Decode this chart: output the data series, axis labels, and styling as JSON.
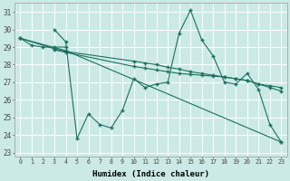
{
  "background_color": "#cceae5",
  "grid_color": "#b8d8d4",
  "line_color": "#1a7060",
  "marker_style": "+",
  "marker_size": 4,
  "xlabel": "Humidex (Indice chaleur)",
  "xlim": [
    -0.5,
    23.5
  ],
  "ylim": [
    22.8,
    31.5
  ],
  "yticks": [
    23,
    24,
    25,
    26,
    27,
    28,
    29,
    30,
    31
  ],
  "xticks": [
    0,
    1,
    2,
    3,
    4,
    5,
    6,
    7,
    8,
    9,
    10,
    11,
    12,
    13,
    14,
    15,
    16,
    17,
    18,
    19,
    20,
    21,
    22,
    23
  ],
  "lines": [
    {
      "x": [
        0,
        1,
        2,
        3,
        4
      ],
      "y": [
        29.5,
        29.1,
        29.0,
        29.0,
        29.0
      ]
    },
    {
      "x": [
        3,
        4,
        5,
        6,
        7,
        8,
        9,
        10,
        11,
        12,
        13,
        14,
        15,
        16,
        17,
        18,
        19,
        20,
        21,
        22,
        23
      ],
      "y": [
        30.0,
        29.3,
        23.8,
        25.2,
        24.6,
        24.4,
        25.4,
        27.2,
        26.7,
        26.9,
        27.0,
        29.8,
        31.1,
        29.4,
        28.5,
        27.0,
        26.9,
        27.5,
        26.6,
        24.6,
        23.6
      ]
    },
    {
      "x": [
        0,
        3,
        4,
        10,
        11,
        12,
        13,
        14,
        15,
        16,
        17,
        18,
        19,
        20,
        21,
        22,
        23
      ],
      "y": [
        29.5,
        28.9,
        28.75,
        28.2,
        28.1,
        28.0,
        27.85,
        27.75,
        27.6,
        27.5,
        27.4,
        27.3,
        27.2,
        27.1,
        26.9,
        26.8,
        26.7
      ]
    },
    {
      "x": [
        3,
        4,
        10,
        11,
        12,
        13,
        14,
        15,
        16,
        17,
        18,
        19,
        20,
        21,
        22,
        23
      ],
      "y": [
        28.85,
        28.7,
        27.9,
        27.8,
        27.7,
        27.6,
        27.5,
        27.45,
        27.4,
        27.35,
        27.3,
        27.2,
        27.1,
        26.9,
        26.7,
        26.5
      ]
    },
    {
      "x": [
        0,
        4,
        23
      ],
      "y": [
        29.5,
        28.8,
        23.6
      ]
    }
  ]
}
